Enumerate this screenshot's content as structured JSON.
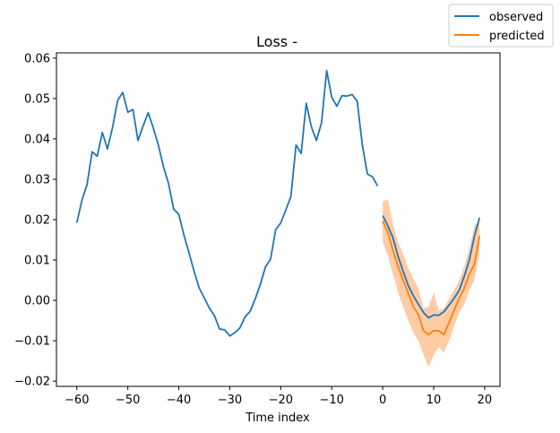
{
  "chart_data": {
    "type": "line",
    "title": "Loss -",
    "xlabel": "Time index",
    "ylabel": "",
    "xlim": [
      -64.0,
      23.0
    ],
    "ylim": [
      -0.0213,
      0.0613
    ],
    "xticks": [
      -60,
      -50,
      -40,
      -30,
      -20,
      -10,
      0,
      10,
      20
    ],
    "xtick_labels": [
      "−60",
      "−50",
      "−40",
      "−30",
      "−20",
      "−10",
      "0",
      "10",
      "20"
    ],
    "yticks": [
      -0.02,
      -0.01,
      0.0,
      0.01,
      0.02,
      0.03,
      0.04,
      0.05,
      0.06
    ],
    "ytick_labels": [
      "−0.02",
      "−0.01",
      "0.00",
      "0.01",
      "0.02",
      "0.03",
      "0.04",
      "0.05",
      "0.06"
    ],
    "legend": {
      "position": "top-right",
      "entries": [
        "observed",
        "predicted"
      ]
    },
    "colors": {
      "observed": "#1f77b4",
      "predicted": "#ff7f0e",
      "band": "#ffbb88"
    },
    "series": [
      {
        "name": "observed",
        "segments": [
          {
            "x": [
              -60,
              -59,
              -58,
              -57,
              -56,
              -55,
              -54,
              -53,
              -52,
              -51,
              -50,
              -49,
              -48,
              -47,
              -46,
              -45,
              -44,
              -43,
              -42,
              -41,
              -40,
              -39,
              -38,
              -37,
              -36,
              -35,
              -34,
              -33,
              -32,
              -31,
              -30,
              -29,
              -28,
              -27,
              -26,
              -25,
              -24,
              -23,
              -22,
              -21,
              -20,
              -19,
              -18,
              -17,
              -16,
              -15,
              -14,
              -13,
              -12,
              -11,
              -10,
              -9,
              -8,
              -7,
              -6,
              -5,
              -4,
              -3,
              -2,
              -1
            ],
            "y": [
              0.0192,
              0.0248,
              0.0287,
              0.0368,
              0.0357,
              0.0416,
              0.0375,
              0.0428,
              0.0495,
              0.0515,
              0.0466,
              0.0473,
              0.0396,
              0.0432,
              0.0465,
              0.0427,
              0.0384,
              0.0331,
              0.0289,
              0.0226,
              0.0213,
              0.0162,
              0.0118,
              0.0072,
              0.0031,
              0.0006,
              -0.0019,
              -0.0038,
              -0.0071,
              -0.0073,
              -0.0088,
              -0.008,
              -0.0068,
              -0.0041,
              -0.0027,
              0.0004,
              0.004,
              0.0083,
              0.0102,
              0.0175,
              0.0192,
              0.0224,
              0.0258,
              0.0385,
              0.0364,
              0.0488,
              0.043,
              0.0396,
              0.044,
              0.0569,
              0.0503,
              0.0481,
              0.0507,
              0.0506,
              0.051,
              0.0493,
              0.0385,
              0.0313,
              0.0306,
              0.0283
            ]
          },
          {
            "x": [
              0,
              1,
              2,
              3,
              4,
              5,
              6,
              7,
              8,
              9,
              10,
              11,
              12,
              13,
              14,
              15,
              16,
              17,
              18,
              19
            ],
            "y": [
              0.021,
              0.0185,
              0.0155,
              0.011,
              0.0072,
              0.0037,
              0.0012,
              -0.001,
              -0.003,
              -0.0043,
              -0.0036,
              -0.0037,
              -0.0028,
              -0.0012,
              0.0005,
              0.0025,
              0.006,
              0.01,
              0.016,
              0.0205
            ]
          }
        ]
      },
      {
        "name": "predicted",
        "x": [
          0,
          1,
          2,
          3,
          4,
          5,
          6,
          7,
          8,
          9,
          10,
          11,
          12,
          13,
          14,
          15,
          16,
          17,
          18,
          19
        ],
        "y": [
          0.0196,
          0.0168,
          0.0125,
          0.0085,
          0.005,
          0.0018,
          -0.0015,
          -0.0035,
          -0.0075,
          -0.0085,
          -0.0075,
          -0.0075,
          -0.0085,
          -0.0055,
          -0.0025,
          0.0005,
          0.003,
          0.0065,
          0.009,
          0.016
        ],
        "lower": [
          0.0145,
          0.011,
          0.0065,
          0.002,
          -0.0015,
          -0.005,
          -0.008,
          -0.01,
          -0.0135,
          -0.0165,
          -0.0135,
          -0.0115,
          -0.013,
          -0.01,
          -0.0065,
          -0.003,
          -0.001,
          0.0025,
          0.005,
          0.012
        ],
        "upper": [
          0.0245,
          0.025,
          0.019,
          0.0145,
          0.0115,
          0.008,
          0.0055,
          0.003,
          -0.002,
          -0.0015,
          0.002,
          -0.0025,
          -0.002,
          0.0005,
          0.0025,
          0.005,
          0.0085,
          0.013,
          0.0185,
          0.02
        ]
      }
    ]
  }
}
